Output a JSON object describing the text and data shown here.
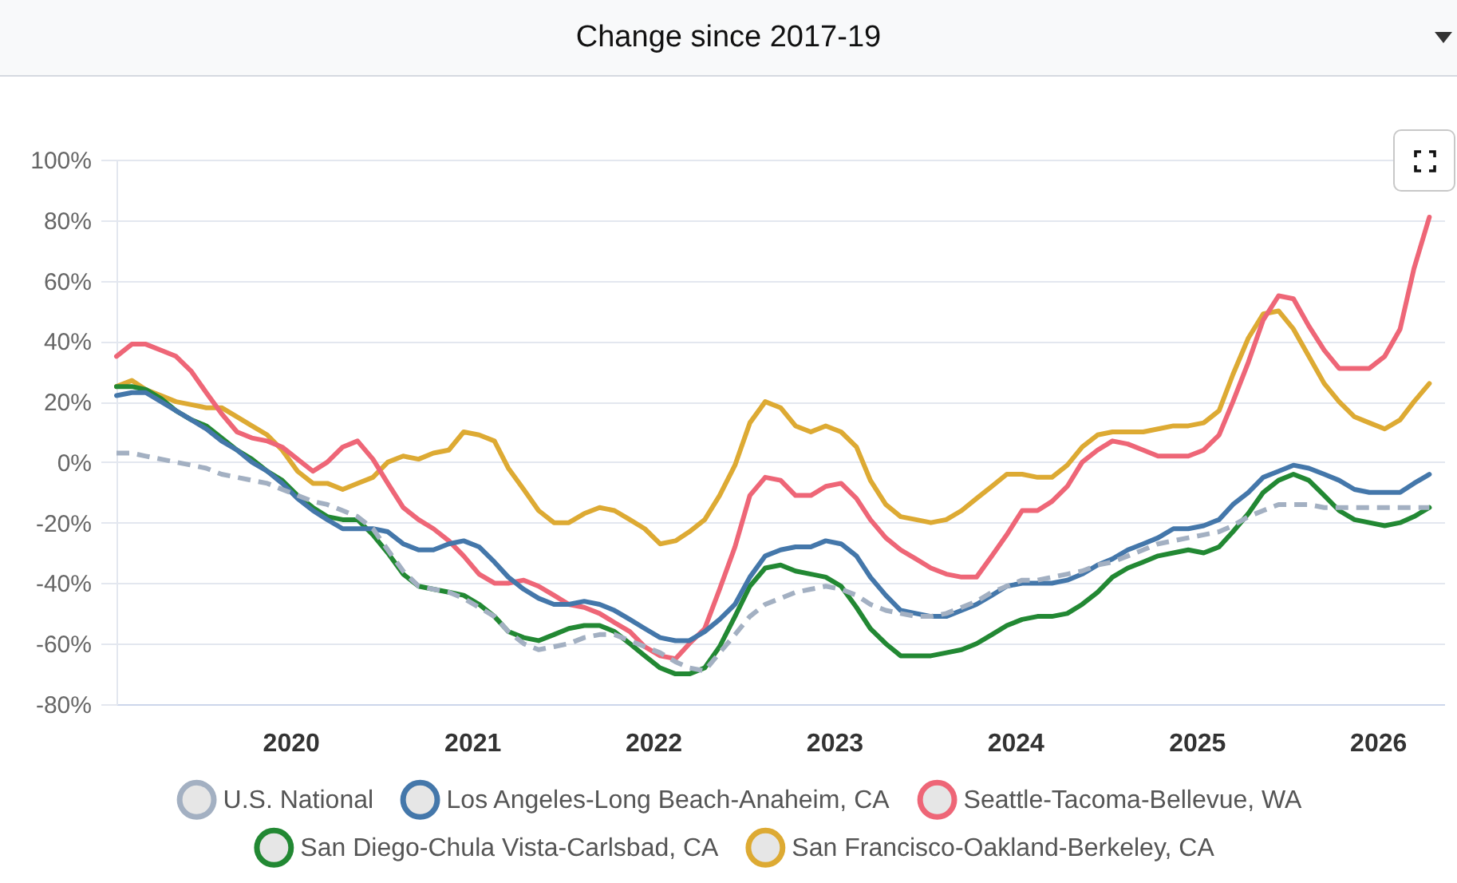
{
  "chart_data": {
    "type": "line",
    "title": "Change since 2017-19",
    "legend": "bottom",
    "grid": "y",
    "line_style": "solid",
    "xlim": [
      "2019-01-15",
      "2026-05-15"
    ],
    "xticks": [
      "2020",
      "2021",
      "2022",
      "2023",
      "2024",
      "2025",
      "2026"
    ],
    "ylim": [
      -80,
      100
    ],
    "yticks": [
      {
        "value": -80,
        "label": "-80%"
      },
      {
        "value": -60,
        "label": "-60%"
      },
      {
        "value": -40,
        "label": "-40%"
      },
      {
        "value": -20,
        "label": "-20%"
      },
      {
        "value": 0,
        "label": "0%"
      },
      {
        "value": 20,
        "label": "20%"
      },
      {
        "value": 40,
        "label": "40%"
      },
      {
        "value": 60,
        "label": "60%"
      },
      {
        "value": 80,
        "label": "80%"
      },
      {
        "value": 100,
        "label": "100%"
      }
    ],
    "x": [
      "2019-01-15",
      "2019-02-15",
      "2019-03-15",
      "2019-04-15",
      "2019-05-15",
      "2019-06-15",
      "2019-07-15",
      "2019-08-15",
      "2019-09-15",
      "2019-10-15",
      "2019-11-15",
      "2019-12-15",
      "2020-01-15",
      "2020-02-15",
      "2020-03-15",
      "2020-04-15",
      "2020-05-15",
      "2020-06-15",
      "2020-07-15",
      "2020-08-15",
      "2020-09-15",
      "2020-10-15",
      "2020-11-15",
      "2020-12-15",
      "2021-01-15",
      "2021-02-15",
      "2021-03-15",
      "2021-04-15",
      "2021-05-15",
      "2021-06-15",
      "2021-07-15",
      "2021-08-15",
      "2021-09-15",
      "2021-10-15",
      "2021-11-15",
      "2021-12-15",
      "2022-01-15",
      "2022-02-15",
      "2022-03-15",
      "2022-04-15",
      "2022-05-15",
      "2022-06-15",
      "2022-07-15",
      "2022-08-15",
      "2022-09-15",
      "2022-10-15",
      "2022-11-15",
      "2022-12-15",
      "2023-01-15",
      "2023-02-15",
      "2023-03-15",
      "2023-04-15",
      "2023-05-15",
      "2023-06-15",
      "2023-07-15",
      "2023-08-15",
      "2023-09-15",
      "2023-10-15",
      "2023-11-15",
      "2023-12-15",
      "2024-01-15",
      "2024-02-15",
      "2024-03-15",
      "2024-04-15",
      "2024-05-15",
      "2024-06-15",
      "2024-07-15",
      "2024-08-15",
      "2024-09-15",
      "2024-10-15",
      "2024-11-15",
      "2024-12-15",
      "2025-01-15",
      "2025-02-15",
      "2025-03-15",
      "2025-04-15",
      "2025-05-15",
      "2025-06-15",
      "2025-07-15",
      "2025-08-15",
      "2025-09-15",
      "2025-10-15",
      "2025-11-15",
      "2025-12-15",
      "2026-01-15",
      "2026-02-15",
      "2026-03-15",
      "2026-04-15"
    ],
    "series": [
      {
        "name": "U.S. National",
        "color": "#a3b0c2",
        "line_style": "dashed",
        "values": [
          3,
          3,
          2,
          1,
          0,
          -1,
          -2,
          -4,
          -5,
          -6,
          -7,
          -9,
          -11,
          -13,
          -14,
          -16,
          -18,
          -22,
          -29,
          -36,
          -41,
          -42,
          -43,
          -45,
          -48,
          -51,
          -56,
          -60,
          -62,
          -61,
          -60,
          -58,
          -57,
          -57,
          -59,
          -61,
          -63,
          -66,
          -68,
          -69,
          -63,
          -57,
          -51,
          -47,
          -45,
          -43,
          -42,
          -41,
          -42,
          -44,
          -47,
          -49,
          -50,
          -51,
          -51,
          -50,
          -48,
          -46,
          -43,
          -41,
          -39,
          -39,
          -38,
          -37,
          -36,
          -34,
          -33,
          -31,
          -29,
          -27,
          -26,
          -25,
          -24,
          -23,
          -21,
          -18,
          -16,
          -14,
          -14,
          -14,
          -15,
          -15,
          -15,
          -15,
          -15,
          -15,
          -15,
          -15
        ]
      },
      {
        "name": "Los Angeles-Long Beach-Anaheim, CA",
        "color": "#4477aa",
        "values": [
          22,
          23,
          23,
          20,
          17,
          14,
          11,
          7,
          4,
          0,
          -3,
          -7,
          -12,
          -16,
          -19,
          -22,
          -22,
          -22,
          -23,
          -27,
          -29,
          -29,
          -27,
          -26,
          -28,
          -33,
          -38,
          -42,
          -45,
          -47,
          -47,
          -46,
          -47,
          -49,
          -52,
          -55,
          -58,
          -59,
          -59,
          -56,
          -52,
          -47,
          -38,
          -31,
          -29,
          -28,
          -28,
          -26,
          -27,
          -31,
          -38,
          -44,
          -49,
          -50,
          -51,
          -51,
          -49,
          -47,
          -44,
          -41,
          -40,
          -40,
          -40,
          -39,
          -37,
          -34,
          -32,
          -29,
          -27,
          -25,
          -22,
          -22,
          -21,
          -19,
          -14,
          -10,
          -5,
          -3,
          -1,
          -2,
          -4,
          -6,
          -9,
          -10,
          -10,
          -10,
          -7,
          -4
        ]
      },
      {
        "name": "Seattle-Tacoma-Bellevue, WA",
        "color": "#ee6677",
        "values": [
          35,
          39,
          39,
          37,
          35,
          30,
          23,
          16,
          10,
          8,
          7,
          5,
          1,
          -3,
          0,
          5,
          7,
          1,
          -7,
          -15,
          -19,
          -22,
          -26,
          -31,
          -37,
          -40,
          -40,
          -39,
          -41,
          -44,
          -47,
          -48,
          -50,
          -53,
          -56,
          -61,
          -64,
          -65,
          -60,
          -55,
          -42,
          -28,
          -11,
          -5,
          -6,
          -11,
          -11,
          -8,
          -7,
          -12,
          -19,
          -25,
          -29,
          -32,
          -35,
          -37,
          -38,
          -38,
          -31,
          -24,
          -16,
          -16,
          -13,
          -8,
          0,
          4,
          7,
          6,
          4,
          2,
          2,
          2,
          4,
          9,
          20,
          33,
          47,
          55,
          54,
          45,
          37,
          31,
          31,
          31,
          35,
          44,
          64,
          81
        ]
      },
      {
        "name": "San Diego-Chula Vista-Carlsbad, CA",
        "color": "#228833",
        "values": [
          25,
          25,
          24,
          21,
          17,
          14,
          12,
          8,
          4,
          1,
          -3,
          -6,
          -11,
          -15,
          -18,
          -19,
          -19,
          -24,
          -30,
          -37,
          -41,
          -42,
          -43,
          -44,
          -47,
          -51,
          -56,
          -58,
          -59,
          -57,
          -55,
          -54,
          -54,
          -56,
          -60,
          -64,
          -68,
          -70,
          -70,
          -68,
          -61,
          -51,
          -41,
          -35,
          -34,
          -36,
          -37,
          -38,
          -41,
          -48,
          -55,
          -60,
          -64,
          -64,
          -64,
          -63,
          -62,
          -60,
          -57,
          -54,
          -52,
          -51,
          -51,
          -50,
          -47,
          -43,
          -38,
          -35,
          -33,
          -31,
          -30,
          -29,
          -30,
          -28,
          -23,
          -17,
          -10,
          -6,
          -4,
          -6,
          -11,
          -16,
          -19,
          -20,
          -21,
          -20,
          -18,
          -15
        ]
      },
      {
        "name": "San Francisco-Oakland-Berkeley, CA",
        "color": "#ddaa33",
        "values": [
          25,
          27,
          24,
          22,
          20,
          19,
          18,
          18,
          15,
          12,
          9,
          4,
          -3,
          -7,
          -7,
          -9,
          -7,
          -5,
          0,
          2,
          1,
          3,
          4,
          10,
          9,
          7,
          -2,
          -9,
          -16,
          -20,
          -20,
          -17,
          -15,
          -16,
          -19,
          -22,
          -27,
          -26,
          -23,
          -19,
          -11,
          -1,
          13,
          20,
          18,
          12,
          10,
          12,
          10,
          5,
          -6,
          -14,
          -18,
          -19,
          -20,
          -19,
          -16,
          -12,
          -8,
          -4,
          -4,
          -5,
          -5,
          -1,
          5,
          9,
          10,
          10,
          10,
          11,
          12,
          12,
          13,
          17,
          29,
          41,
          49,
          50,
          44,
          35,
          26,
          20,
          15,
          13,
          11,
          14,
          20,
          26
        ]
      }
    ]
  }
}
